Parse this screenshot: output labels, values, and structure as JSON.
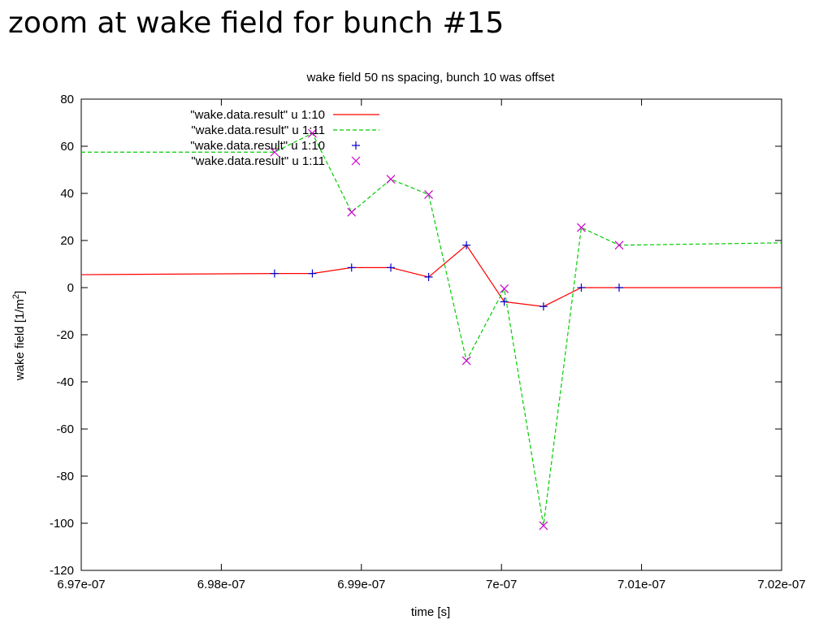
{
  "slide": {
    "title": "zoom at wake field for bunch #15"
  },
  "chart_data": {
    "type": "line",
    "title": "wake field 50 ns spacing, bunch 10 was offset",
    "xlabel": "time [s]",
    "ylabel_text": "wake field [1/m",
    "ylabel_sup": "2",
    "ylabel_close": "]",
    "xlim": [
      6.97e-07,
      7.02e-07
    ],
    "ylim": [
      -120,
      80
    ],
    "x_ticks": [
      6.97e-07,
      6.98e-07,
      6.99e-07,
      7e-07,
      7.01e-07,
      7.02e-07
    ],
    "x_tick_labels": [
      "6.97e-07",
      "6.98e-07",
      "6.99e-07",
      "7e-07",
      "7.01e-07",
      "7.02e-07"
    ],
    "y_ticks": [
      80,
      60,
      40,
      20,
      0,
      -20,
      -40,
      -60,
      -80,
      -100,
      -120
    ],
    "y_tick_labels": [
      "80",
      "60",
      "40",
      "20",
      "0",
      "-20",
      "-40",
      "-60",
      "-80",
      "-100",
      "-120"
    ],
    "grid": false,
    "legend_position": "top-left",
    "series": [
      {
        "name": "\"wake.data.result\" u 1:10",
        "style": "line",
        "color": "#ff0000",
        "dash": "solid",
        "x": [
          6.97e-07,
          6.9838e-07,
          6.9865e-07,
          6.9893e-07,
          6.9921e-07,
          6.9948e-07,
          6.9975e-07,
          7.0002e-07,
          7.003e-07,
          7.0057e-07,
          7.0084e-07,
          7.02e-07
        ],
        "y": [
          5.5,
          6,
          6,
          8.5,
          8.5,
          4.5,
          18,
          -6,
          -8,
          0,
          0,
          0
        ]
      },
      {
        "name": "\"wake.data.result\" u 1:11",
        "style": "line",
        "color": "#00cc00",
        "dash": "dashed",
        "x": [
          6.97e-07,
          6.9838e-07,
          6.9865e-07,
          6.9893e-07,
          6.9921e-07,
          6.9948e-07,
          6.9975e-07,
          7.0002e-07,
          7.003e-07,
          7.0057e-07,
          7.0084e-07,
          7.02e-07
        ],
        "y": [
          57.5,
          57.5,
          65.5,
          32,
          46,
          39.5,
          -31,
          -0.5,
          -101,
          25.5,
          18,
          19
        ]
      },
      {
        "name": "\"wake.data.result\" u 1:10",
        "style": "plus",
        "color": "#0000cc",
        "x": [
          6.9838e-07,
          6.9865e-07,
          6.9893e-07,
          6.9921e-07,
          6.9948e-07,
          6.9975e-07,
          7.0002e-07,
          7.003e-07,
          7.0057e-07,
          7.0084e-07
        ],
        "y": [
          6,
          6,
          8.5,
          8.5,
          4.5,
          18,
          -6,
          -8,
          0,
          0
        ]
      },
      {
        "name": "\"wake.data.result\" u 1:11",
        "style": "cross",
        "color": "#cc00cc",
        "x": [
          6.9838e-07,
          6.9865e-07,
          6.9893e-07,
          6.9921e-07,
          6.9948e-07,
          6.9975e-07,
          7.0002e-07,
          7.003e-07,
          7.0057e-07,
          7.0084e-07
        ],
        "y": [
          57.5,
          65.5,
          32,
          46,
          39.5,
          -31,
          -0.5,
          -101,
          25.5,
          18
        ]
      }
    ]
  }
}
